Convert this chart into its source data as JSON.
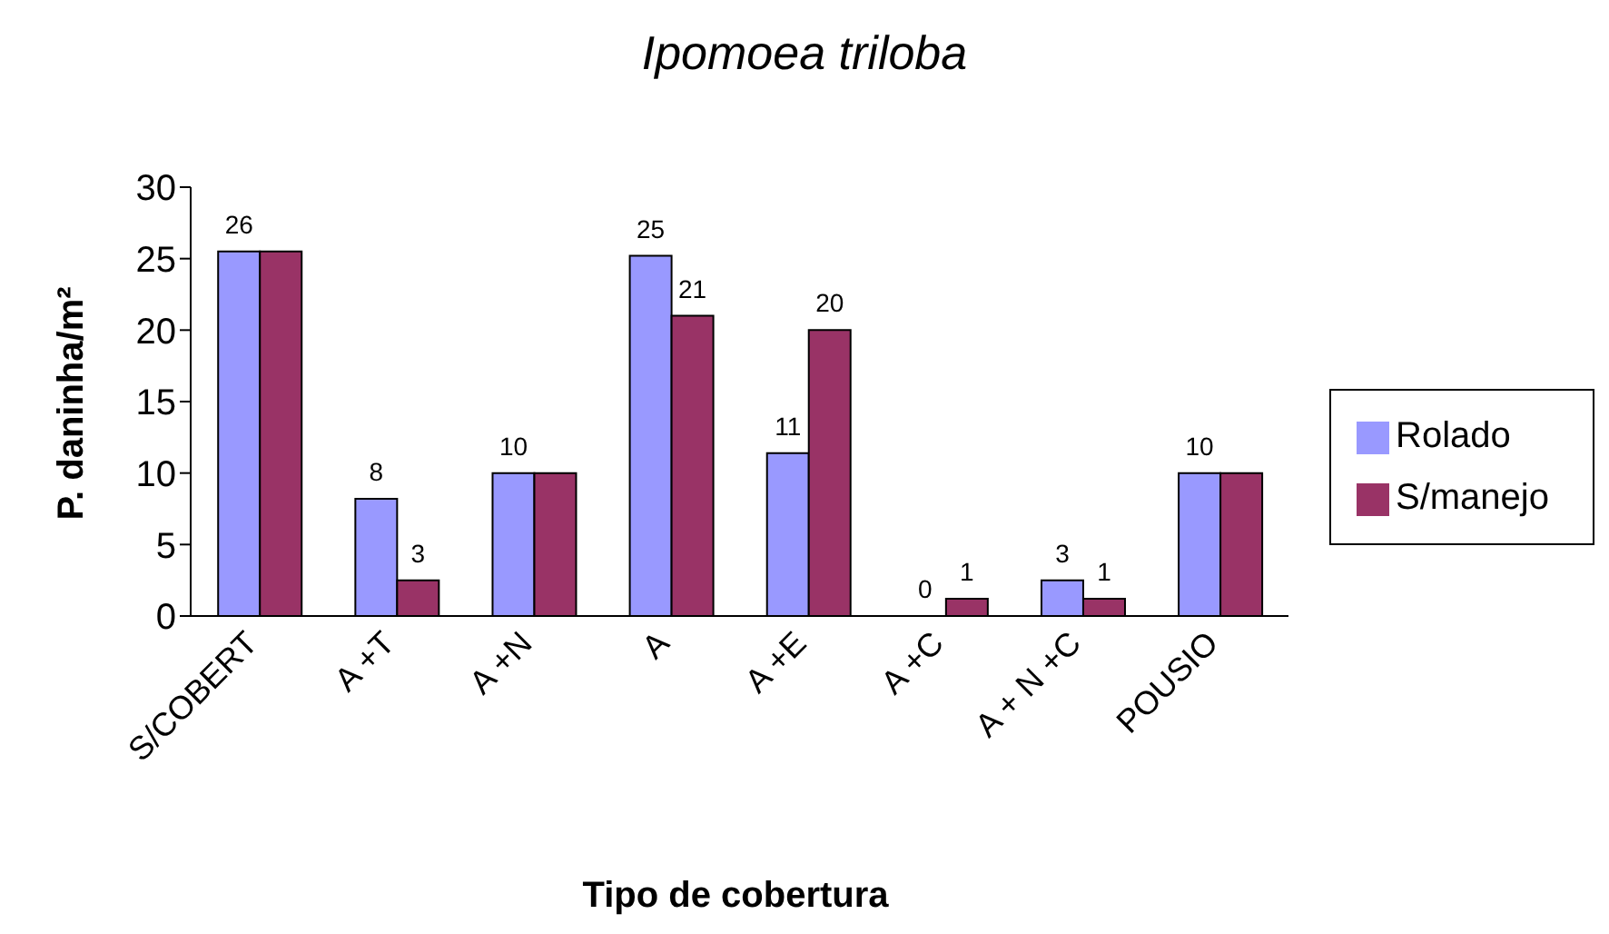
{
  "chart_data": {
    "type": "bar",
    "title": "Ipomoea triloba",
    "xlabel": "Tipo de cobertura",
    "ylabel": "P. daninha/m²",
    "categories": [
      "S/COBERT",
      "A +T",
      "A +N",
      "A",
      "A +E",
      "A +C",
      "A + N +C",
      "POUSIO"
    ],
    "series": [
      {
        "name": "Rolado",
        "color": "#9999ff",
        "values": [
          25.5,
          8.2,
          10,
          25.2,
          11.4,
          0,
          2.5,
          10
        ],
        "value_labels": [
          "26",
          "8",
          "10",
          "25",
          "11",
          "0",
          "3",
          "10"
        ]
      },
      {
        "name": "S/manejo",
        "color": "#993366",
        "values": [
          25.5,
          2.5,
          10,
          21,
          20,
          1.2,
          1.2,
          10
        ],
        "value_labels": [
          null,
          "3",
          null,
          "21",
          "20",
          "1",
          "1",
          null
        ]
      }
    ],
    "ylim": [
      0,
      30
    ],
    "yticks": [
      0,
      5,
      10,
      15,
      20,
      25,
      30
    ],
    "grid": false,
    "legend": "right"
  }
}
